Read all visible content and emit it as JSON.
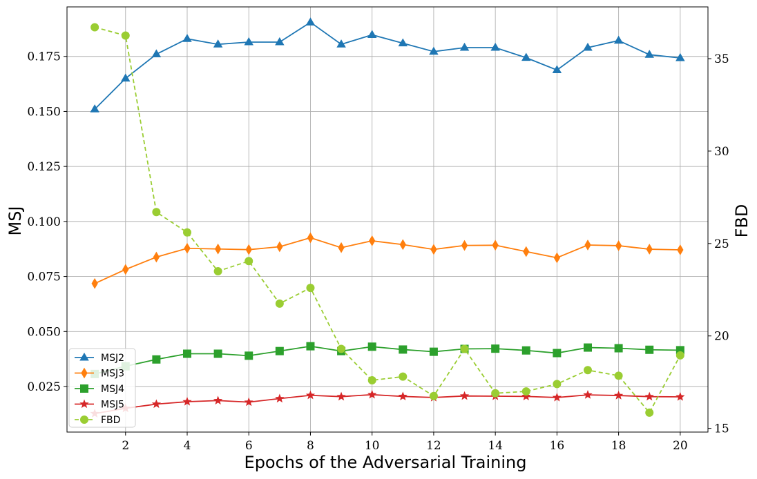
{
  "chart_data": {
    "type": "line",
    "xlabel": "Epochs of the Adversarial Training",
    "ylabel_left": "MSJ",
    "ylabel_right": "FBD",
    "x": [
      1,
      2,
      3,
      4,
      5,
      6,
      7,
      8,
      9,
      10,
      11,
      12,
      13,
      14,
      15,
      16,
      17,
      18,
      19,
      20
    ],
    "xlim": [
      0.1,
      20.9
    ],
    "ylim_left": [
      0.0043,
      0.1975
    ],
    "ylim_right": [
      14.8,
      37.8
    ],
    "xticks": [
      "2",
      "4",
      "6",
      "8",
      "10",
      "12",
      "14",
      "16",
      "18",
      "20"
    ],
    "yticks_left": [
      "0.025",
      "0.050",
      "0.075",
      "0.100",
      "0.125",
      "0.150",
      "0.175"
    ],
    "yticks_right": [
      "15",
      "20",
      "25",
      "30",
      "35"
    ],
    "grid": true,
    "legend_position": "lower-left",
    "series": [
      {
        "name": "MSJ2",
        "axis": "left",
        "color": "#1f77b4",
        "marker": "triangle",
        "dashed": false,
        "values": [
          0.151,
          0.165,
          0.176,
          0.183,
          0.1805,
          0.1815,
          0.1815,
          0.1905,
          0.1805,
          0.1848,
          0.181,
          0.1772,
          0.179,
          0.179,
          0.1744,
          0.1688,
          0.179,
          0.1822,
          0.1758,
          0.1743
        ]
      },
      {
        "name": "MSJ3",
        "axis": "left",
        "color": "#ff7f0e",
        "marker": "diamond",
        "dashed": false,
        "values": [
          0.0718,
          0.0782,
          0.0838,
          0.0878,
          0.0875,
          0.0872,
          0.0885,
          0.0926,
          0.0881,
          0.0912,
          0.0895,
          0.0873,
          0.0891,
          0.0892,
          0.0863,
          0.0835,
          0.0893,
          0.089,
          0.0874,
          0.0871
        ]
      },
      {
        "name": "MSJ4",
        "axis": "left",
        "color": "#2ca02c",
        "marker": "square",
        "dashed": false,
        "values": [
          0.0307,
          0.0342,
          0.0373,
          0.0399,
          0.0399,
          0.039,
          0.0411,
          0.0433,
          0.0411,
          0.0431,
          0.0418,
          0.0408,
          0.0421,
          0.0422,
          0.0414,
          0.0402,
          0.0427,
          0.0424,
          0.0417,
          0.0415
        ]
      },
      {
        "name": "MSJ5",
        "axis": "left",
        "color": "#d62728",
        "marker": "star",
        "dashed": false,
        "values": [
          0.0127,
          0.0151,
          0.017,
          0.0181,
          0.0186,
          0.0179,
          0.0195,
          0.021,
          0.0204,
          0.0213,
          0.0205,
          0.02,
          0.0207,
          0.0206,
          0.0205,
          0.02,
          0.0212,
          0.0209,
          0.0204,
          0.0203
        ]
      },
      {
        "name": "FBD",
        "axis": "right",
        "color": "#9acd32",
        "marker": "circle",
        "dashed": true,
        "values": [
          36.7,
          36.25,
          26.7,
          25.6,
          23.5,
          24.05,
          21.75,
          22.6,
          19.3,
          17.6,
          17.8,
          16.75,
          19.3,
          16.9,
          17.0,
          17.4,
          18.15,
          17.85,
          15.85,
          18.95
        ]
      }
    ]
  }
}
